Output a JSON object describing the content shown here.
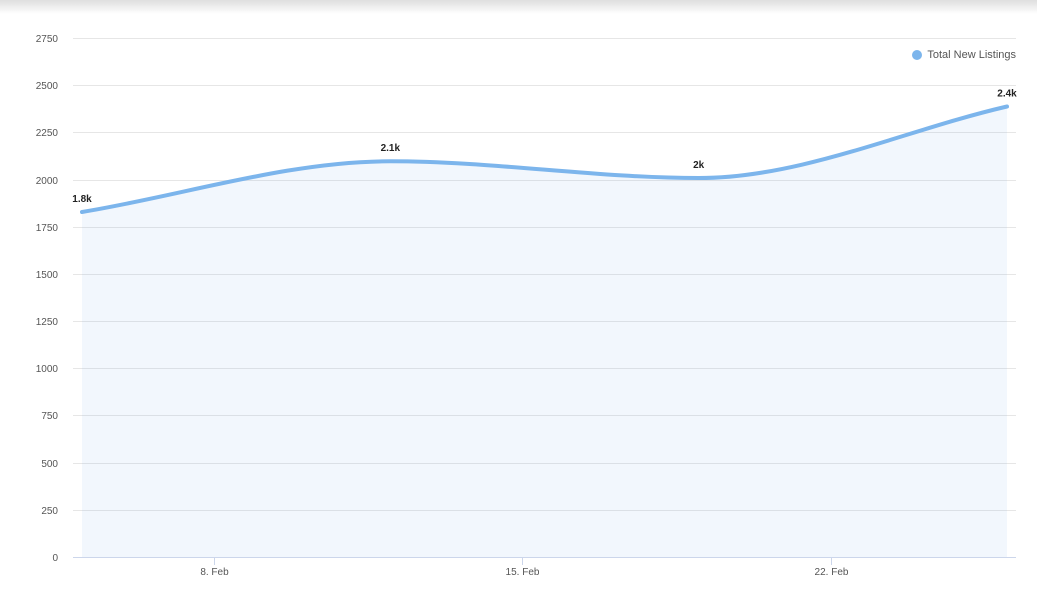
{
  "chart_data": {
    "type": "area",
    "x": [
      "2025-02-05",
      "2025-02-12",
      "2025-02-19",
      "2025-02-26"
    ],
    "x_ticks": [
      "8. Feb",
      "15. Feb",
      "22. Feb"
    ],
    "x_tick_dates": [
      "2025-02-08",
      "2025-02-15",
      "2025-02-22"
    ],
    "x_range": [
      "2025-02-05",
      "2025-02-26"
    ],
    "series": [
      {
        "name": "Total New Listings",
        "values": [
          1828,
          2097,
          2008,
          2387
        ],
        "data_labels": [
          "1.8k",
          "2.1k",
          "2k",
          "2.4k"
        ],
        "color": "#7cb5ec"
      }
    ],
    "ylim": [
      0,
      2750
    ],
    "y_ticks": [
      "0",
      "250",
      "500",
      "750",
      "1000",
      "1250",
      "1500",
      "1750",
      "2000",
      "2250",
      "2500",
      "2750"
    ],
    "grid": true,
    "legend_position": "top-right",
    "title": "",
    "xlabel": "",
    "ylabel": ""
  }
}
